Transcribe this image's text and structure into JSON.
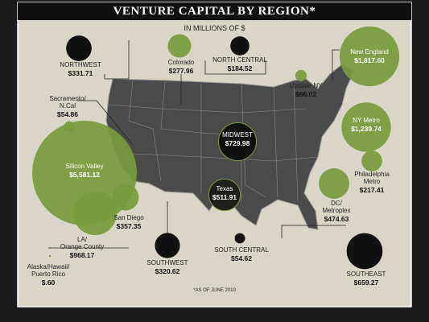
{
  "chart_data": {
    "type": "bubble",
    "title": "VENTURE CAPITAL BY REGION*",
    "subtitle": "IN MILLIONS OF $",
    "note": "*AS OF JUNE 2010",
    "categories": [
      "NORTHWEST",
      "Colorado",
      "NORTH CENTRAL",
      "New England",
      "Upstate NY",
      "Sacramento/\nN.Cal",
      "MIDWEST",
      "NY Metro",
      "Silicon Valley",
      "Texas",
      "Philadelphia\nMetro",
      "San Diego",
      "DC/\nMetroplex",
      "LA/\nOrange County",
      "Alaska/Hawaii/\nPuerto Rico",
      "SOUTHWEST",
      "SOUTH CENTRAL",
      "SOUTHEAST"
    ],
    "values": [
      331.71,
      277.96,
      184.52,
      1817.6,
      66.02,
      54.86,
      729.98,
      1239.74,
      5581.12,
      511.91,
      217.41,
      357.35,
      474.63,
      968.17,
      0.6,
      320.62,
      54.62,
      659.27
    ],
    "value_labels": [
      "$331.71",
      "$277.96",
      "$184.52",
      "$1,817.60",
      "$66.02",
      "$54.86",
      "$729.98",
      "$1,239.74",
      "$5,581.12",
      "$511.91",
      "$217.41",
      "$357.35",
      "$474.63",
      "$968.17",
      "$.60",
      "$320.62",
      "$54.62",
      "$659.27"
    ],
    "colors": [
      "#111111",
      "#7a9a3c",
      "#111111",
      "#7a9a3c",
      "#7a9a3c",
      "#7a9a3c",
      "#111111",
      "#7a9a3c",
      "#7a9a3c",
      "#1e1e1a",
      "#7a9a3c",
      "#7a9a3c",
      "#7a9a3c",
      "#7a9a3c",
      "#7a9a3c",
      "#111111",
      "#111111",
      "#111111"
    ]
  }
}
